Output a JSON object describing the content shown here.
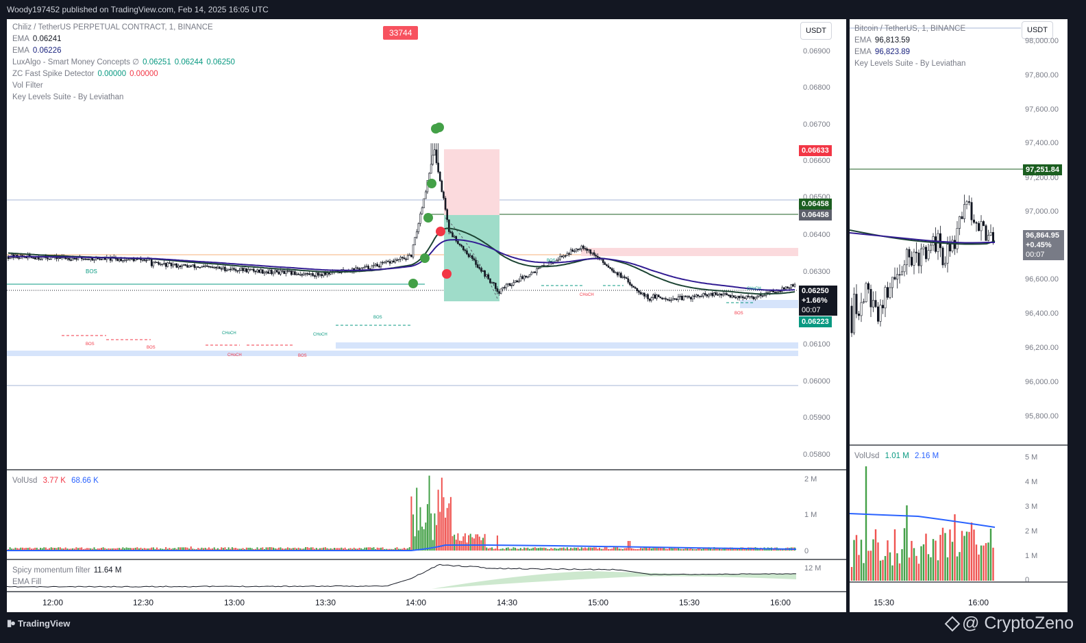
{
  "header": {
    "published_by": "Woody197452 published on TradingView.com, Feb 14, 2025 16:05 UTC"
  },
  "footer": {
    "brand": "TradingView",
    "watermark": "@ CryptoZeno"
  },
  "main_chart": {
    "symbol_line": "Chiliz / TetherUS PERPETUAL CONTRACT, 1, BINANCE",
    "currency_button": "USDT",
    "alert_badge": "33744",
    "indicators": [
      {
        "name": "EMA",
        "values": [
          {
            "text": "0.06241",
            "color": "#131722"
          }
        ]
      },
      {
        "name": "EMA",
        "values": [
          {
            "text": "0.06226",
            "color": "#1a237e"
          }
        ]
      },
      {
        "name": "LuxAlgo - Smart Money Concepts  ∅",
        "values": [
          {
            "text": "0.06251",
            "color": "#089981"
          },
          {
            "text": "0.06244",
            "color": "#089981"
          },
          {
            "text": "0.06250",
            "color": "#089981"
          }
        ]
      },
      {
        "name": "ZC Fast Spike Detector",
        "values": [
          {
            "text": "0.00000",
            "color": "#089981"
          },
          {
            "text": "0.00000",
            "color": "#f23645"
          }
        ]
      },
      {
        "name": "Vol Filter",
        "values": []
      },
      {
        "name": "Key Levels Suite - By Leviathan",
        "values": []
      }
    ],
    "price_axis": [
      "0.06900",
      "0.06800",
      "0.06700",
      "0.06600",
      "0.06500",
      "0.06400",
      "0.06300",
      "0.06200",
      "0.06100",
      "0.06000",
      "0.05900",
      "0.05800"
    ],
    "price_tags": {
      "red": "0.06633",
      "green_level": "0.06458",
      "gray_level": "0.06458",
      "last_price": "0.06250",
      "last_change": "+1.66%",
      "countdown": "00:07",
      "teal": "0.06223"
    },
    "structure_labels": [
      "BOS",
      "BOS",
      "BOS",
      "BOS",
      "CHoCH",
      "CHoCH",
      "CHoCH",
      "BOS",
      "BOS",
      "CHoCH",
      "CHoCH",
      "BOS"
    ],
    "volume_pane": {
      "title": "VolUsd",
      "values": [
        {
          "text": "3.77 K",
          "color": "#f23645"
        },
        {
          "text": "68.66 K",
          "color": "#2962ff"
        }
      ],
      "axis": [
        "2 M",
        "1 M",
        "0"
      ]
    },
    "momentum_pane": {
      "title": "Spicy momentum filter",
      "value": "11.64 M",
      "subtitle": "EMA Fill",
      "axis": [
        "12 M"
      ]
    },
    "time_axis": [
      "12:00",
      "12:30",
      "13:00",
      "13:30",
      "14:00",
      "14:30",
      "15:00",
      "15:30",
      "16:00"
    ]
  },
  "btc_chart": {
    "symbol_line": "Bitcoin / TetherUS, 1, BINANCE",
    "currency_button": "USDT",
    "indicators": [
      {
        "name": "EMA",
        "values": [
          {
            "text": "96,813.59",
            "color": "#131722"
          }
        ]
      },
      {
        "name": "EMA",
        "values": [
          {
            "text": "96,823.89",
            "color": "#1a237e"
          }
        ]
      },
      {
        "name": "Key Levels Suite - By Leviathan",
        "values": []
      }
    ],
    "price_axis": [
      "98,000.00",
      "97,800.00",
      "97,600.00",
      "97,400.00",
      "97,200.00",
      "97,000.00",
      "96,800.00",
      "96,600.00",
      "96,400.00",
      "96,200.00",
      "96,000.00",
      "95,800.00"
    ],
    "price_tags": {
      "green_level": "97,251.84",
      "last_price": "96,864.95",
      "last_change": "+0.45%",
      "countdown": "00:07"
    },
    "volume_pane": {
      "title": "VolUsd",
      "values": [
        {
          "text": "1.01 M",
          "color": "#089981"
        },
        {
          "text": "2.16 M",
          "color": "#2962ff"
        }
      ],
      "axis": [
        "5 M",
        "4 M",
        "3 M",
        "2 M",
        "1 M",
        "0"
      ]
    },
    "time_axis": [
      "15:30",
      "16:00"
    ]
  },
  "colors": {
    "up": "#089981",
    "down": "#f23645",
    "ema_dark": "#1b4332",
    "ema_blue": "#311b92",
    "vol_ma": "#2962ff"
  }
}
